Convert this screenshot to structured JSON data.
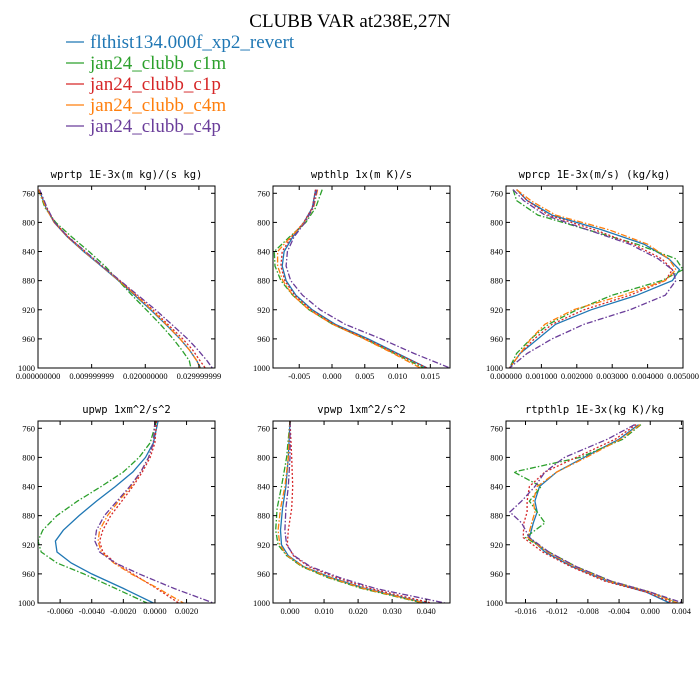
{
  "title": "CLUBB VAR at238E,27N",
  "legend": [
    {
      "name": "flthist134.000f_xp2_revert",
      "color": "#1f77b4",
      "dash": "solid"
    },
    {
      "name": "jan24_clubb_c1m",
      "color": "#2ca02c",
      "dash": "dashdot"
    },
    {
      "name": "jan24_clubb_c1p",
      "color": "#d62728",
      "dash": "dot"
    },
    {
      "name": "jan24_clubb_c4m",
      "color": "#ff7f0e",
      "dash": "dashdot"
    },
    {
      "name": "jan24_clubb_c4p",
      "color": "#6a3d9a",
      "dash": "dashdot"
    }
  ],
  "chart_data": [
    {
      "type": "line",
      "title": "wprtp  1E-3x(m kg)/(s kg)",
      "xlim": [
        0,
        0.033
      ],
      "ylim": [
        1000,
        750
      ],
      "xticks": [
        {
          "v": 0,
          "label": "0.000000000"
        },
        {
          "v": 0.01,
          "label": "0.009999999"
        },
        {
          "v": 0.02,
          "label": "0.020000000"
        },
        {
          "v": 0.03,
          "label": "0.029999999"
        }
      ],
      "yticks": [
        {
          "v": 760,
          "label": "760"
        },
        {
          "v": 800,
          "label": "800"
        },
        {
          "v": 840,
          "label": "840"
        },
        {
          "v": 880,
          "label": "880"
        },
        {
          "v": 920,
          "label": "920"
        },
        {
          "v": 960,
          "label": "960"
        },
        {
          "v": 1000,
          "label": "1000"
        }
      ],
      "levels": [
        755,
        780,
        800,
        820,
        840,
        860,
        880,
        900,
        920,
        940,
        960,
        975,
        990,
        1000
      ],
      "series": [
        {
          "values": [
            0.0002,
            0.0015,
            0.003,
            0.0055,
            0.0085,
            0.0118,
            0.015,
            0.018,
            0.021,
            0.0238,
            0.0265,
            0.0282,
            0.0296,
            0.0303
          ]
        },
        {
          "values": [
            0.0001,
            0.0013,
            0.0033,
            0.0063,
            0.0095,
            0.0125,
            0.015,
            0.0175,
            0.0202,
            0.0228,
            0.0252,
            0.0268,
            0.0282,
            0.0285
          ]
        },
        {
          "values": [
            0.0002,
            0.0016,
            0.0031,
            0.0057,
            0.0088,
            0.012,
            0.0152,
            0.0183,
            0.0214,
            0.0242,
            0.027,
            0.0288,
            0.0302,
            0.0312
          ]
        },
        {
          "values": [
            0.0001,
            0.0015,
            0.003,
            0.0055,
            0.0086,
            0.0119,
            0.0151,
            0.0182,
            0.0212,
            0.0239,
            0.0265,
            0.0282,
            0.0296,
            0.0302
          ]
        },
        {
          "values": [
            0.0003,
            0.0017,
            0.0031,
            0.0056,
            0.0088,
            0.012,
            0.0153,
            0.0186,
            0.0219,
            0.0249,
            0.0279,
            0.0298,
            0.0315,
            0.0325
          ]
        }
      ]
    },
    {
      "type": "line",
      "title": "wpthlp  1x(m K)/s",
      "xlim": [
        -0.009,
        0.018
      ],
      "ylim": [
        1000,
        750
      ],
      "xticks": [
        {
          "v": -0.005,
          "label": "-0.005"
        },
        {
          "v": 0,
          "label": "0.000"
        },
        {
          "v": 0.005,
          "label": "0.005"
        },
        {
          "v": 0.01,
          "label": "0.010"
        },
        {
          "v": 0.015,
          "label": "0.015"
        }
      ],
      "yticks": [
        {
          "v": 760,
          "label": "760"
        },
        {
          "v": 800,
          "label": "800"
        },
        {
          "v": 840,
          "label": "840"
        },
        {
          "v": 880,
          "label": "880"
        },
        {
          "v": 920,
          "label": "920"
        },
        {
          "v": 960,
          "label": "960"
        },
        {
          "v": 1000,
          "label": "1000"
        }
      ],
      "levels": [
        755,
        780,
        800,
        820,
        840,
        860,
        880,
        900,
        920,
        940,
        960,
        980,
        1000
      ],
      "series": [
        {
          "values": [
            -0.0025,
            -0.003,
            -0.0043,
            -0.006,
            -0.0073,
            -0.0076,
            -0.007,
            -0.0055,
            -0.003,
            0.0005,
            0.0055,
            0.01,
            0.0145
          ]
        },
        {
          "values": [
            -0.0015,
            -0.0025,
            -0.004,
            -0.0065,
            -0.0088,
            -0.0087,
            -0.0078,
            -0.006,
            -0.0035,
            0.0001,
            0.005,
            0.0095,
            0.014
          ]
        },
        {
          "values": [
            -0.0025,
            -0.003,
            -0.0043,
            -0.0062,
            -0.0076,
            -0.0078,
            -0.0072,
            -0.0057,
            -0.0032,
            0.0003,
            0.0052,
            0.0098,
            0.0145
          ]
        },
        {
          "values": [
            -0.0022,
            -0.0028,
            -0.0042,
            -0.0063,
            -0.0083,
            -0.0083,
            -0.0075,
            -0.006,
            -0.0035,
            0.0001,
            0.0049,
            0.0093,
            0.0135
          ]
        },
        {
          "values": [
            -0.0023,
            -0.0029,
            -0.0041,
            -0.0058,
            -0.0068,
            -0.007,
            -0.0063,
            -0.0045,
            -0.0018,
            0.002,
            0.0075,
            0.0125,
            0.018
          ]
        }
      ]
    },
    {
      "type": "line",
      "title": "wprcp  1E-3x(m/s) (kg/kg)",
      "xlim": [
        0,
        0.005
      ],
      "ylim": [
        1000,
        750
      ],
      "xticks": [
        {
          "v": 0,
          "label": "0.000000"
        },
        {
          "v": 0.001,
          "label": "0.001000"
        },
        {
          "v": 0.002,
          "label": "0.002000"
        },
        {
          "v": 0.003,
          "label": "0.003000"
        },
        {
          "v": 0.004,
          "label": "0.004000"
        },
        {
          "v": 0.005,
          "label": "0.005000"
        }
      ],
      "yticks": [
        {
          "v": 760,
          "label": "760"
        },
        {
          "v": 800,
          "label": "800"
        },
        {
          "v": 840,
          "label": "840"
        },
        {
          "v": 880,
          "label": "880"
        },
        {
          "v": 920,
          "label": "920"
        },
        {
          "v": 960,
          "label": "960"
        },
        {
          "v": 1000,
          "label": "1000"
        }
      ],
      "levels": [
        755,
        770,
        790,
        810,
        830,
        850,
        865,
        880,
        900,
        920,
        940,
        960,
        980,
        1000
      ],
      "series": [
        {
          "values": [
            0.0003,
            0.0006,
            0.0013,
            0.0027,
            0.0039,
            0.0046,
            0.0049,
            0.0047,
            0.0037,
            0.0024,
            0.0014,
            0.0009,
            0.0004,
            0.0001
          ]
        },
        {
          "values": [
            0.0002,
            0.0003,
            0.0009,
            0.0023,
            0.0037,
            0.0048,
            0.005,
            0.0044,
            0.003,
            0.002,
            0.0012,
            0.0007,
            0.0003,
            0.0001
          ]
        },
        {
          "values": [
            0.0003,
            0.0006,
            0.0012,
            0.0025,
            0.0036,
            0.0044,
            0.0047,
            0.0045,
            0.0035,
            0.0022,
            0.0013,
            0.0008,
            0.0004,
            0.0001
          ]
        },
        {
          "values": [
            0.0003,
            0.0007,
            0.0014,
            0.0029,
            0.004,
            0.0046,
            0.0048,
            0.0045,
            0.0033,
            0.0019,
            0.0011,
            0.0007,
            0.0004,
            0.0001
          ]
        },
        {
          "values": [
            0.0002,
            0.0005,
            0.0011,
            0.0023,
            0.0035,
            0.0043,
            0.0047,
            0.0048,
            0.0045,
            0.0035,
            0.0022,
            0.0013,
            0.0006,
            0.0001
          ]
        }
      ]
    },
    {
      "type": "line",
      "title": "upwp  1xm^2/s^2",
      "xlim": [
        -0.0074,
        0.0038
      ],
      "ylim": [
        1000,
        750
      ],
      "xticks": [
        {
          "v": -0.006,
          "label": "-0.0060"
        },
        {
          "v": -0.004,
          "label": "-0.0040"
        },
        {
          "v": -0.002,
          "label": "-0.0020"
        },
        {
          "v": 0,
          "label": "0.0000"
        },
        {
          "v": 0.002,
          "label": "0.0020"
        }
      ],
      "yticks": [
        {
          "v": 760,
          "label": "760"
        },
        {
          "v": 800,
          "label": "800"
        },
        {
          "v": 840,
          "label": "840"
        },
        {
          "v": 880,
          "label": "880"
        },
        {
          "v": 920,
          "label": "920"
        },
        {
          "v": 960,
          "label": "960"
        },
        {
          "v": 1000,
          "label": "1000"
        }
      ],
      "levels": [
        750,
        780,
        800,
        820,
        840,
        860,
        880,
        900,
        915,
        930,
        945,
        960,
        980,
        1000
      ],
      "series": [
        {
          "values": [
            0.0002,
            -0.0001,
            -0.0006,
            -0.0014,
            -0.0025,
            -0.0037,
            -0.0048,
            -0.0058,
            -0.0063,
            -0.0062,
            -0.0053,
            -0.004,
            -0.002,
            -0.0001
          ]
        },
        {
          "values": [
            0.0001,
            -0.0003,
            -0.001,
            -0.002,
            -0.0034,
            -0.0049,
            -0.0062,
            -0.0071,
            -0.0074,
            -0.0072,
            -0.0062,
            -0.0045,
            -0.0025,
            -0.0005
          ]
        },
        {
          "values": [
            0.0001,
            0.0,
            -0.0003,
            -0.0008,
            -0.0014,
            -0.0021,
            -0.0028,
            -0.0033,
            -0.0035,
            -0.0033,
            -0.0025,
            -0.0014,
            0.0001,
            0.0015
          ]
        },
        {
          "values": [
            0.0,
            -0.0001,
            -0.0004,
            -0.0009,
            -0.0015,
            -0.0023,
            -0.003,
            -0.0035,
            -0.0036,
            -0.0034,
            -0.0026,
            -0.0015,
            0.0002,
            0.0018
          ]
        },
        {
          "values": [
            0.0,
            -0.0001,
            -0.0004,
            -0.0009,
            -0.0016,
            -0.0024,
            -0.0032,
            -0.0037,
            -0.0038,
            -0.0035,
            -0.0025,
            -0.001,
            0.0012,
            0.0037
          ]
        }
      ]
    },
    {
      "type": "line",
      "title": "vpwp  1xm^2/s^2",
      "xlim": [
        -0.005,
        0.047
      ],
      "ylim": [
        1000,
        750
      ],
      "xticks": [
        {
          "v": 0,
          "label": "0.000"
        },
        {
          "v": 0.01,
          "label": "0.010"
        },
        {
          "v": 0.02,
          "label": "0.020"
        },
        {
          "v": 0.03,
          "label": "0.030"
        },
        {
          "v": 0.04,
          "label": "0.040"
        }
      ],
      "yticks": [
        {
          "v": 760,
          "label": "760"
        },
        {
          "v": 800,
          "label": "800"
        },
        {
          "v": 840,
          "label": "840"
        },
        {
          "v": 880,
          "label": "880"
        },
        {
          "v": 920,
          "label": "920"
        },
        {
          "v": 960,
          "label": "960"
        },
        {
          "v": 1000,
          "label": "1000"
        }
      ],
      "levels": [
        750,
        800,
        840,
        870,
        900,
        920,
        935,
        950,
        965,
        980,
        1000
      ],
      "series": [
        {
          "values": [
            0.0,
            -0.0005,
            -0.0012,
            -0.0022,
            -0.0028,
            -0.0025,
            -0.0005,
            0.004,
            0.012,
            0.022,
            0.04
          ]
        },
        {
          "values": [
            0.0,
            -0.001,
            -0.0025,
            -0.0038,
            -0.0042,
            -0.0035,
            -0.001,
            0.0035,
            0.011,
            0.021,
            0.039
          ]
        },
        {
          "values": [
            0.0,
            0.0005,
            0.0008,
            0.0005,
            -0.0005,
            -0.0008,
            0.001,
            0.0055,
            0.0135,
            0.0235,
            0.0415
          ]
        },
        {
          "values": [
            0.0,
            -0.0005,
            -0.0015,
            -0.0028,
            -0.0035,
            -0.003,
            -0.0008,
            0.0038,
            0.0115,
            0.0215,
            0.0395
          ]
        },
        {
          "values": [
            0.0,
            0.0,
            -0.0005,
            -0.0012,
            -0.0015,
            -0.001,
            0.0012,
            0.006,
            0.0145,
            0.025,
            0.0455
          ]
        }
      ]
    },
    {
      "type": "line",
      "title": "rtpthlp  1E-3x(kg K)/kg",
      "xlim": [
        -0.0185,
        0.0042
      ],
      "ylim": [
        1000,
        750
      ],
      "xticks": [
        {
          "v": -0.016,
          "label": "-0.016"
        },
        {
          "v": -0.012,
          "label": "-0.012"
        },
        {
          "v": -0.008,
          "label": "-0.008"
        },
        {
          "v": -0.004,
          "label": "-0.004"
        },
        {
          "v": 0.0,
          "label": "0.000"
        },
        {
          "v": 0.004,
          "label": "0.004"
        }
      ],
      "yticks": [
        {
          "v": 760,
          "label": "760"
        },
        {
          "v": 800,
          "label": "800"
        },
        {
          "v": 840,
          "label": "840"
        },
        {
          "v": 880,
          "label": "880"
        },
        {
          "v": 920,
          "label": "920"
        },
        {
          "v": 960,
          "label": "960"
        },
        {
          "v": 1000,
          "label": "1000"
        }
      ],
      "levels": [
        755,
        775,
        800,
        820,
        840,
        860,
        875,
        890,
        910,
        930,
        950,
        970,
        985,
        1000
      ],
      "series": [
        {
          "values": [
            -0.0015,
            -0.004,
            -0.0085,
            -0.012,
            -0.0142,
            -0.0148,
            -0.0145,
            -0.015,
            -0.0155,
            -0.0135,
            -0.01,
            -0.0055,
            -0.0005,
            0.0025
          ]
        },
        {
          "values": [
            -0.0012,
            -0.0035,
            -0.009,
            -0.0175,
            -0.014,
            -0.0155,
            -0.0145,
            -0.0135,
            -0.016,
            -0.013,
            -0.0095,
            -0.005,
            0.0,
            0.0035
          ]
        },
        {
          "values": [
            -0.0018,
            -0.0045,
            -0.0095,
            -0.0135,
            -0.0155,
            -0.0158,
            -0.0158,
            -0.0162,
            -0.0163,
            -0.0138,
            -0.0102,
            -0.0058,
            -0.0005,
            0.003
          ]
        },
        {
          "values": [
            -0.0013,
            -0.0038,
            -0.0082,
            -0.012,
            -0.0145,
            -0.015,
            -0.0148,
            -0.0152,
            -0.0157,
            -0.0132,
            -0.0097,
            -0.0053,
            0.0,
            0.0035
          ]
        },
        {
          "values": [
            -0.002,
            -0.0055,
            -0.011,
            -0.0135,
            -0.0148,
            -0.0165,
            -0.018,
            -0.0165,
            -0.0155,
            -0.013,
            -0.0095,
            -0.005,
            0.0,
            0.0042
          ]
        }
      ]
    }
  ]
}
